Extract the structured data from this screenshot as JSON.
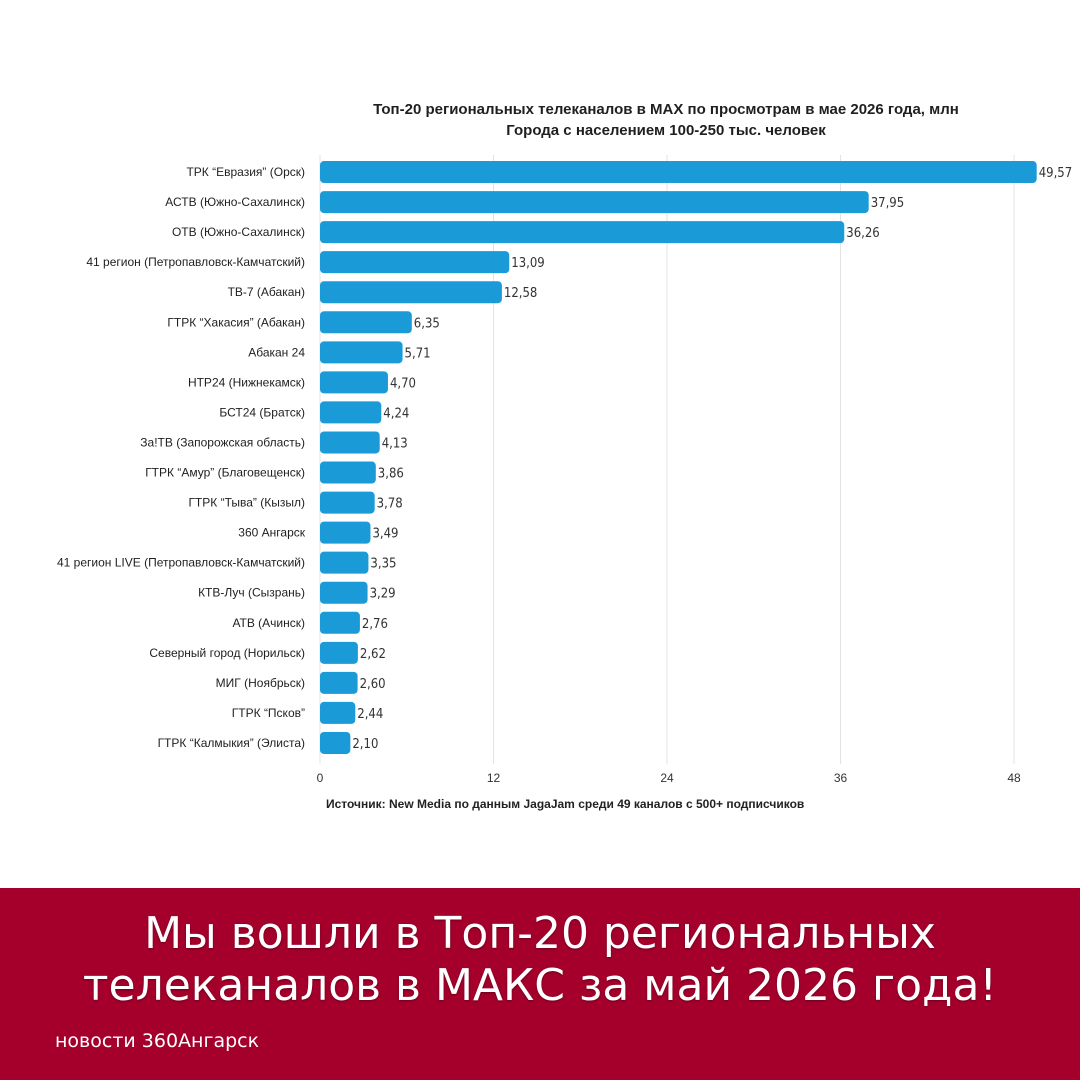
{
  "chart_data": {
    "type": "bar",
    "orientation": "horizontal",
    "title": "Топ-20 региональных телеканалов в MAX по просмотрам в мае 2026 года, млн",
    "subtitle": "Города с населением 100-250 тыс. человек",
    "categories": [
      "ТРК “Евразия” (Орск)",
      "АСТВ (Южно-Сахалинск)",
      "ОТВ (Южно-Сахалинск)",
      "41 регион (Петропавловск-Камчатский)",
      "ТВ-7 (Абакан)",
      "ГТРК “Хакасия” (Абакан)",
      "Абакан 24",
      "НТР24 (Нижнекамск)",
      "БСТ24 (Братск)",
      "За!ТВ (Запорожская область)",
      "ГТРК “Амур” (Благовещенск)",
      "ГТРК “Тыва” (Кызыл)",
      "360 Ангарск",
      "41 регион LIVE (Петропавловск-Камчатский)",
      "КТВ-Луч (Сызрань)",
      "АТВ (Ачинск)",
      "Северный город (Норильск)",
      "МИГ (Ноябрьск)",
      "ГТРК “Псков”",
      "ГТРК “Калмыкия” (Элиста)"
    ],
    "values": [
      49.57,
      37.95,
      36.26,
      13.09,
      12.58,
      6.35,
      5.71,
      4.7,
      4.24,
      4.13,
      3.86,
      3.78,
      3.49,
      3.35,
      3.29,
      2.76,
      2.62,
      2.6,
      2.44,
      2.1
    ],
    "value_labels": [
      "49,57",
      "37,95",
      "36,26",
      "13,09",
      "12,58",
      "6,35",
      "5,71",
      "4,70",
      "4,24",
      "4,13",
      "3,86",
      "3,78",
      "3,49",
      "3,35",
      "3,29",
      "2,76",
      "2,62",
      "2,60",
      "2,44",
      "2,10"
    ],
    "xlim": [
      0,
      48
    ],
    "xticks": [
      0,
      12,
      24,
      36,
      48
    ],
    "xlabel": "",
    "ylabel": "",
    "grid": "vertical",
    "bar_color": "#1a9bd7",
    "source": "Источник: New Media по данным JagaJam среди 49 каналов с 500+ подписчиков"
  },
  "banner": {
    "line1": "Мы вошли в Топ-20 региональных",
    "line2": "телеканалов в МАКС за май 2026 года!",
    "credit": "новости 360Ангарск",
    "color": "#a4002b"
  }
}
